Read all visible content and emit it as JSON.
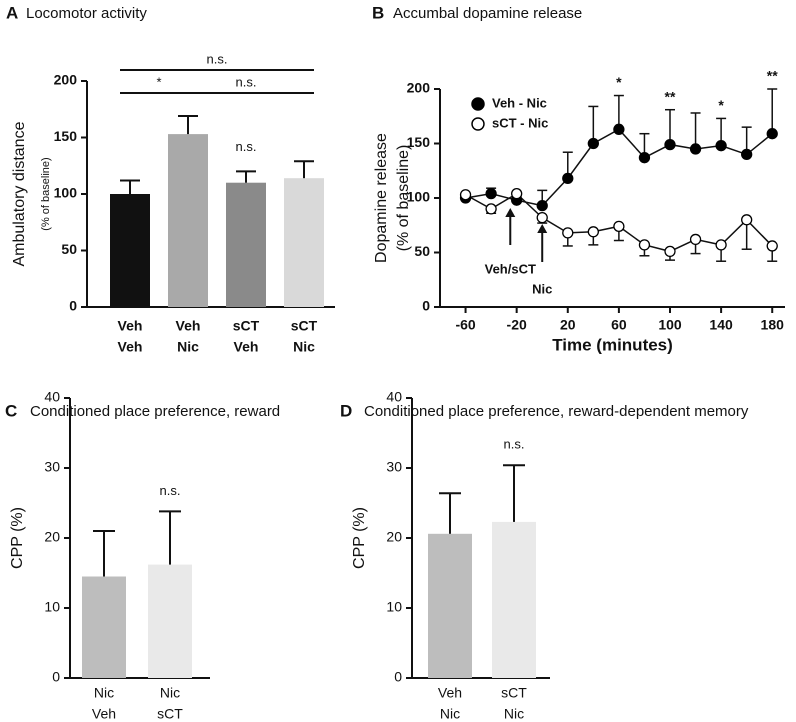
{
  "chart_data": [
    {
      "panel": "A",
      "type": "bar",
      "title": "Locomotor activity",
      "ylabel": "Ambulatory distance",
      "ylabel_sub": "(% of baseline)",
      "categories": [
        [
          "Veh",
          "Veh"
        ],
        [
          "Veh",
          "Nic"
        ],
        [
          "sCT",
          "Veh"
        ],
        [
          "sCT",
          "Nic"
        ]
      ],
      "values": [
        100,
        153,
        110,
        114
      ],
      "errors": [
        12,
        16,
        10,
        15
      ],
      "colors": [
        "#111111",
        "#a9a9a9",
        "#8a8a8a",
        "#d9d9d9"
      ],
      "ylim": [
        0,
        200
      ],
      "yticks": [
        0,
        50,
        100,
        150,
        200
      ],
      "annotations": [
        "n.s.",
        "*",
        "n.s.",
        "n.s."
      ]
    },
    {
      "panel": "B",
      "type": "line",
      "title": "Accumbal dopamine release",
      "ylabel": "Dopamine release",
      "ylabel_sub": "(% of baseline)",
      "xlabel": "Time (minutes)",
      "x": [
        -60,
        -40,
        -20,
        0,
        20,
        40,
        60,
        80,
        100,
        120,
        140,
        160,
        180
      ],
      "series": [
        {
          "name": "Veh - Nic",
          "color": "#000000",
          "error_direction": "up",
          "values": [
            100,
            104,
            98,
            93,
            118,
            150,
            163,
            137,
            149,
            145,
            148,
            140,
            159
          ],
          "errors": [
            4,
            5,
            5,
            14,
            24,
            34,
            31,
            22,
            32,
            33,
            25,
            25,
            41
          ],
          "significance": [
            null,
            null,
            null,
            null,
            null,
            null,
            "*",
            null,
            "**",
            null,
            "*",
            null,
            "**"
          ]
        },
        {
          "name": "sCT - Nic",
          "color": "#ffffff",
          "error_direction": "down",
          "values": [
            103,
            90,
            104,
            82,
            68,
            69,
            74,
            57,
            51,
            62,
            57,
            80,
            56
          ],
          "errors": [
            3,
            4,
            3,
            5,
            12,
            12,
            13,
            10,
            8,
            13,
            15,
            27,
            14
          ]
        }
      ],
      "xlim": [
        -80,
        190
      ],
      "xticks": [
        -60,
        -20,
        20,
        60,
        100,
        140,
        180
      ],
      "ylim": [
        0,
        200
      ],
      "yticks": [
        0,
        50,
        100,
        150,
        200
      ],
      "legend": "upper left",
      "annotations": [
        {
          "text": "Veh/sCT",
          "x": -25
        },
        {
          "text": "Nic",
          "x": 0
        }
      ]
    },
    {
      "panel": "C",
      "type": "bar",
      "title": "Conditioned place preference, reward",
      "ylabel": "CPP (%)",
      "categories": [
        [
          "Nic",
          "Veh"
        ],
        [
          "Nic",
          "sCT"
        ]
      ],
      "values": [
        14.5,
        16.2
      ],
      "errors": [
        6.5,
        7.6
      ],
      "colors": [
        "#bdbdbd",
        "#e9e9e9"
      ],
      "ylim": [
        0,
        40
      ],
      "yticks": [
        0,
        10,
        20,
        30,
        40
      ],
      "annotations": [
        "n.s."
      ]
    },
    {
      "panel": "D",
      "type": "bar",
      "title": "Conditioned place preference, reward-dependent memory",
      "ylabel": "CPP (%)",
      "categories": [
        [
          "Veh",
          "Nic"
        ],
        [
          "sCT",
          "Nic"
        ]
      ],
      "values": [
        20.6,
        22.3
      ],
      "errors": [
        5.8,
        8.1
      ],
      "colors": [
        "#bdbdbd",
        "#e9e9e9"
      ],
      "ylim": [
        0,
        40
      ],
      "yticks": [
        0,
        10,
        20,
        30,
        40
      ],
      "annotations": [
        "n.s."
      ]
    }
  ]
}
